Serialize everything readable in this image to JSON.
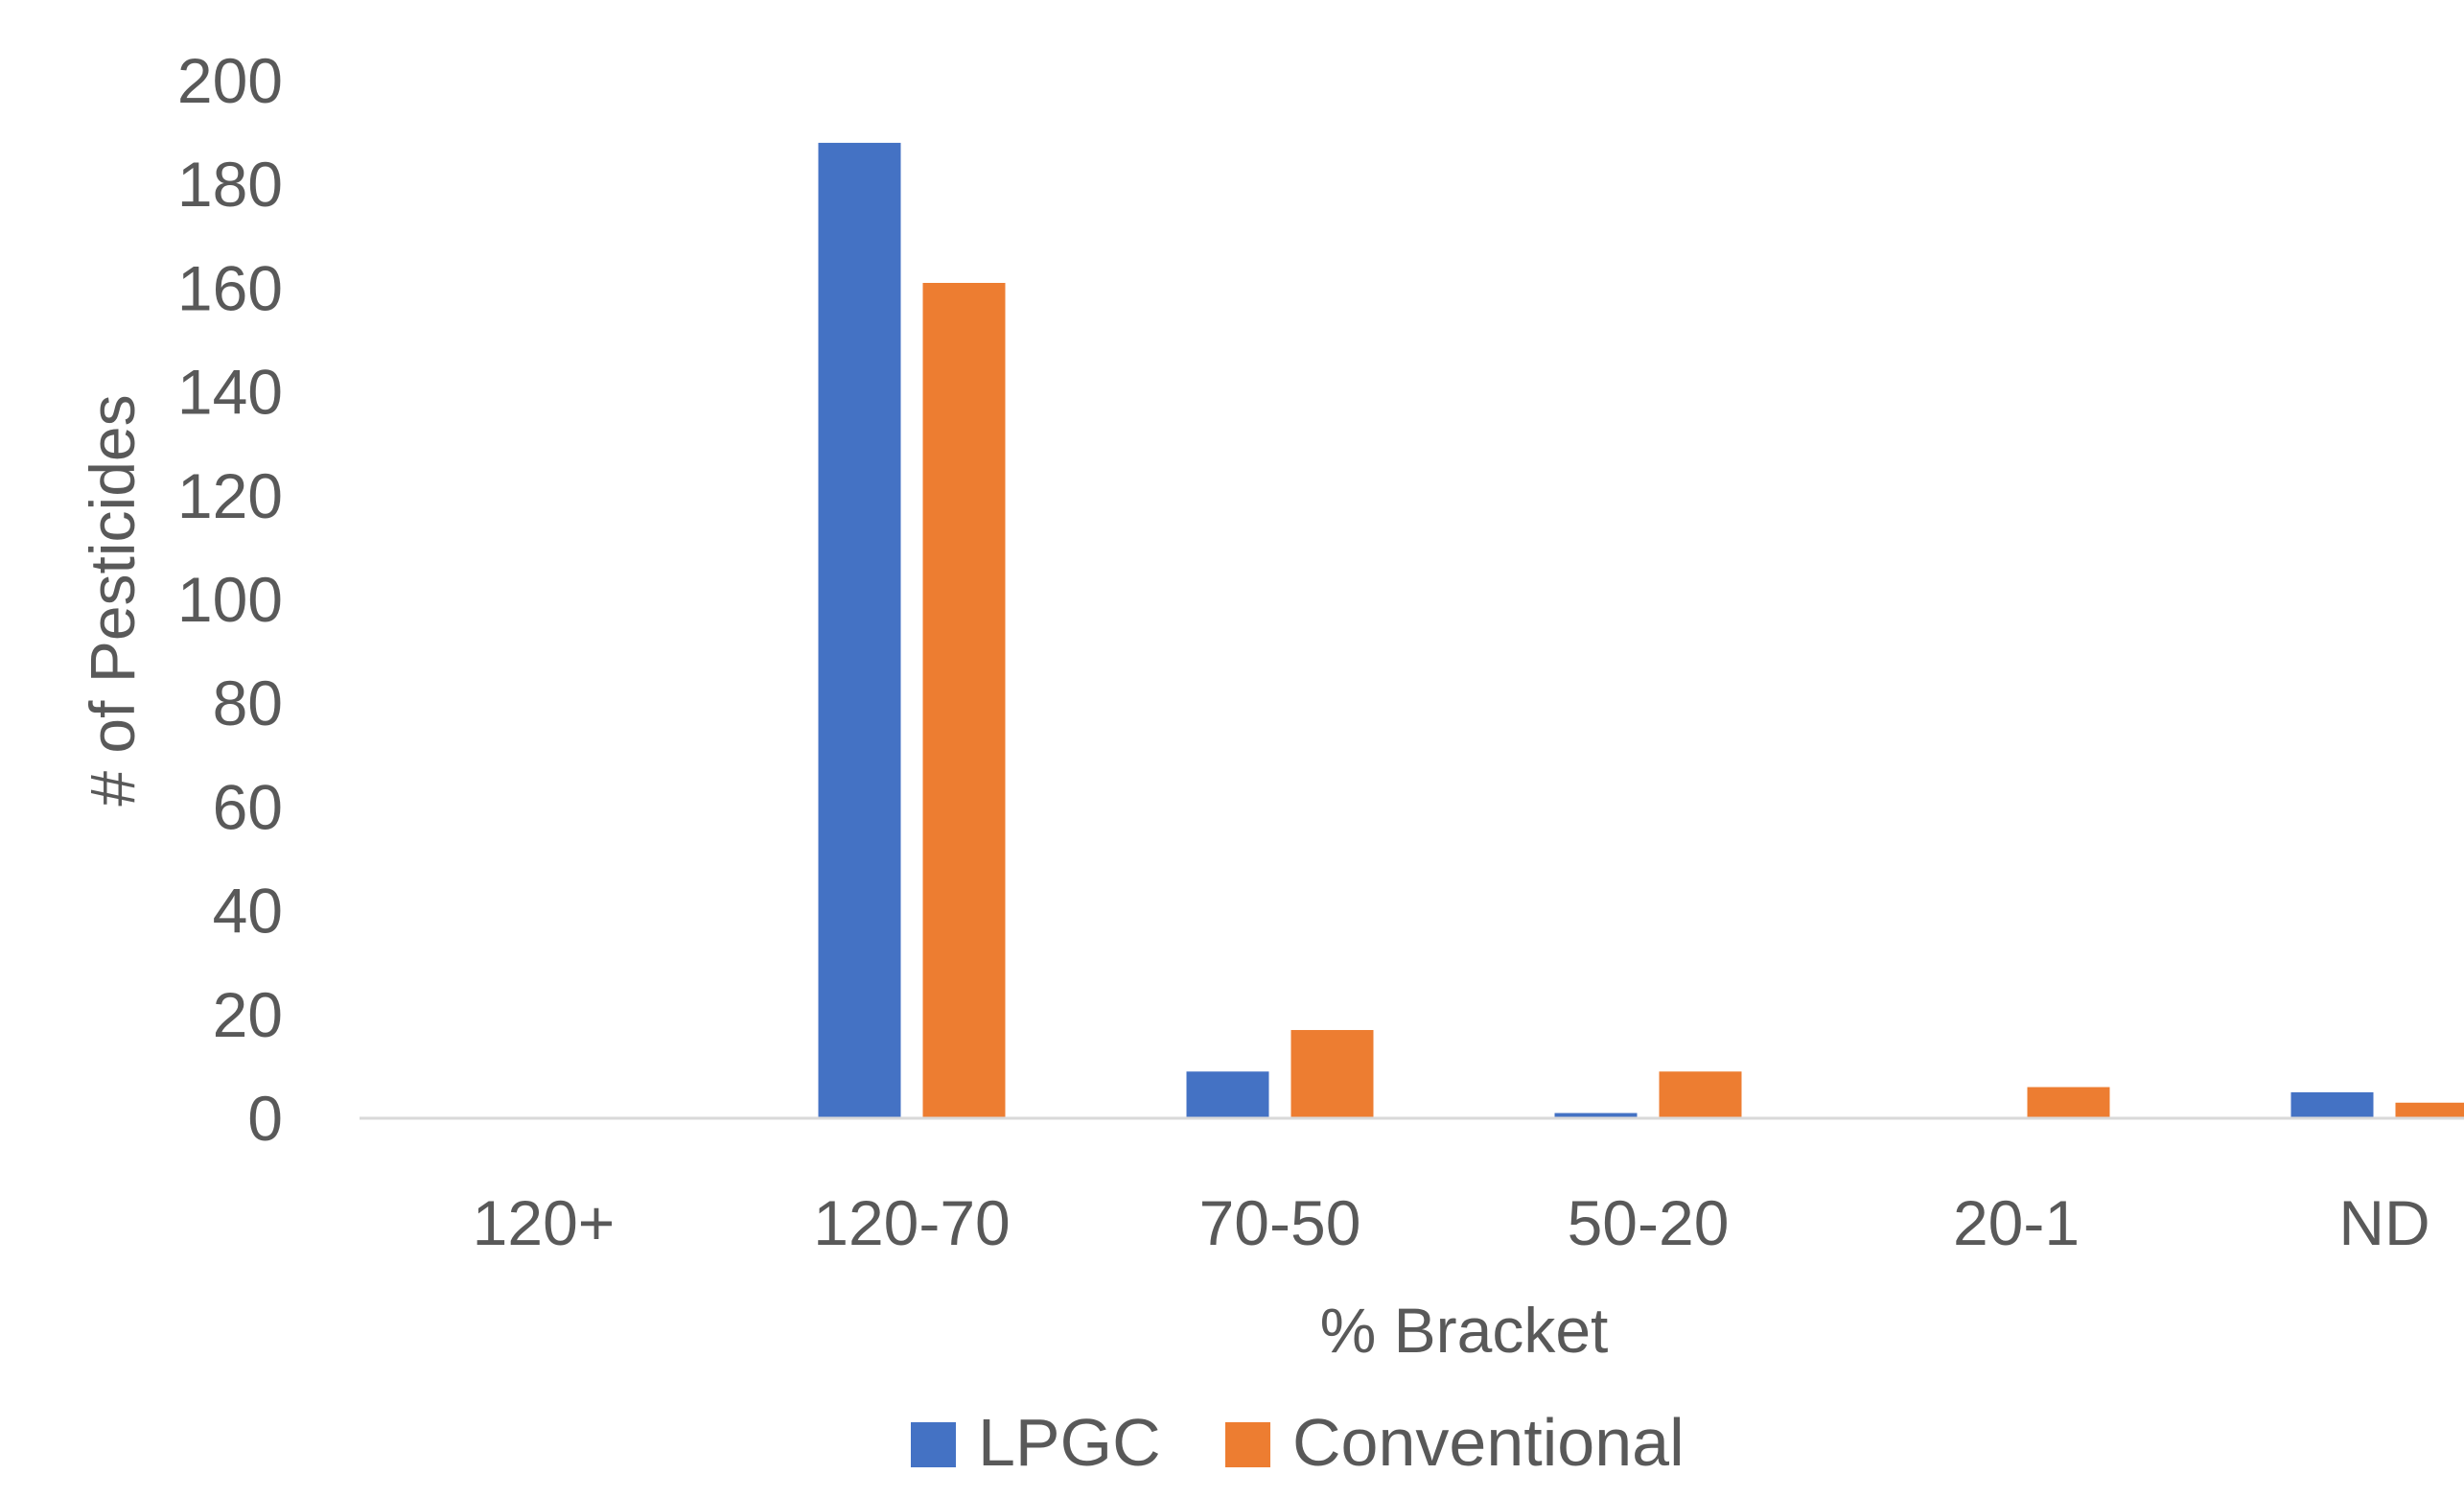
{
  "chart_data": {
    "type": "bar",
    "title": "",
    "xlabel": "% Bracket",
    "ylabel": "# of Pesticides",
    "ylim": [
      0,
      200
    ],
    "yticks": [
      0,
      20,
      40,
      60,
      80,
      100,
      120,
      140,
      160,
      180,
      200
    ],
    "categories": [
      "120+",
      "120-70",
      "70-50",
      "50-20",
      "20-1",
      "ND"
    ],
    "series": [
      {
        "name": "LPGC",
        "color": "#4472C4",
        "values": [
          0,
          188,
          9,
          1,
          0,
          5
        ]
      },
      {
        "name": "Conventional",
        "color": "#ED7D31",
        "values": [
          0,
          161,
          17,
          9,
          6,
          3
        ]
      }
    ],
    "grid": false,
    "legend": "bottom"
  }
}
